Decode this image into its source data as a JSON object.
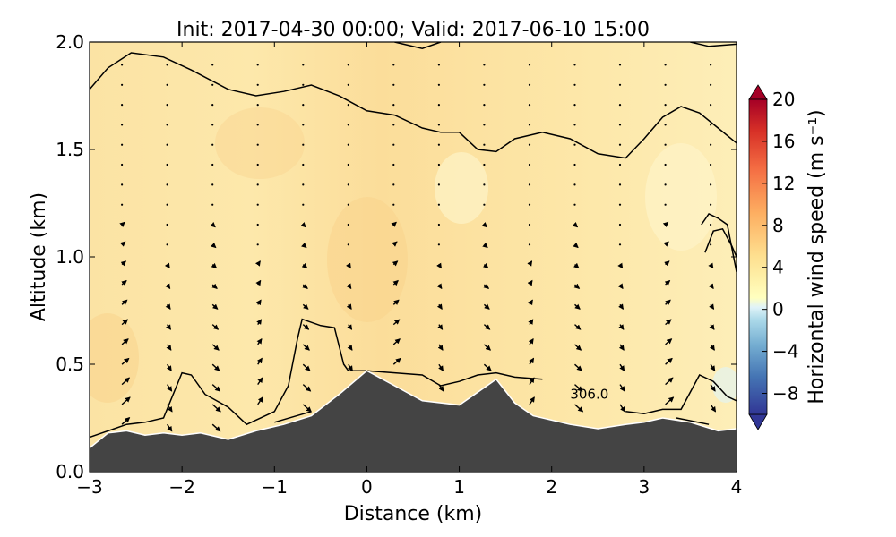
{
  "chart_data": {
    "type": "heatmap",
    "title": "Init: 2017-04-30 00:00; Valid: 2017-06-10 15:00",
    "xlabel": "Distance (km)",
    "ylabel": "Altitude (km)",
    "xlim": [
      -3,
      4
    ],
    "ylim": [
      0.0,
      2.0
    ],
    "x_ticks": [
      -3,
      -2,
      -1,
      0,
      1,
      2,
      3,
      4
    ],
    "x_tick_labels": [
      "−3",
      "−2",
      "−1",
      "0",
      "1",
      "2",
      "3",
      "4"
    ],
    "y_ticks": [
      0.0,
      0.5,
      1.0,
      1.5,
      2.0
    ],
    "y_tick_labels": [
      "0.0",
      "0.5",
      "1.0",
      "1.5",
      "2.0"
    ],
    "colorbar": {
      "label": "Horizontal wind speed (m s⁻¹)",
      "range": [
        -10,
        20
      ],
      "ticks": [
        -8,
        -4,
        0,
        4,
        8,
        12,
        16,
        20
      ],
      "tick_labels": [
        "−8",
        "−4",
        "0",
        "4",
        "8",
        "12",
        "16",
        "20"
      ],
      "extend": "both"
    },
    "contour_label": "306.0",
    "contour_label_pos": [
      2.2,
      0.34
    ],
    "terrain": {
      "x": [
        -3.0,
        -2.8,
        -2.6,
        -2.4,
        -2.2,
        -2.0,
        -1.8,
        -1.5,
        -1.2,
        -0.9,
        -0.6,
        -0.3,
        0.0,
        0.3,
        0.6,
        1.0,
        1.2,
        1.4,
        1.6,
        1.8,
        2.2,
        2.5,
        2.8,
        3.0,
        3.2,
        3.5,
        3.8,
        4.0
      ],
      "y": [
        0.11,
        0.18,
        0.19,
        0.17,
        0.18,
        0.17,
        0.18,
        0.15,
        0.19,
        0.22,
        0.26,
        0.36,
        0.47,
        0.4,
        0.33,
        0.31,
        0.37,
        0.43,
        0.32,
        0.26,
        0.22,
        0.2,
        0.22,
        0.23,
        0.25,
        0.23,
        0.19,
        0.2
      ]
    },
    "isentropes": [
      {
        "x": [
          -3.0,
          -2.8,
          -2.55,
          -2.2,
          -1.9,
          -1.5,
          -1.2,
          -0.9,
          -0.6,
          -0.3,
          0.0,
          0.3,
          0.6,
          0.8,
          1.0,
          1.2,
          1.4,
          1.6,
          1.9,
          2.2,
          2.5,
          2.8,
          3.0,
          3.2,
          3.4,
          3.6,
          3.8,
          4.0
        ],
        "y": [
          1.78,
          1.88,
          1.95,
          1.93,
          1.87,
          1.78,
          1.75,
          1.77,
          1.8,
          1.75,
          1.68,
          1.66,
          1.6,
          1.58,
          1.58,
          1.5,
          1.49,
          1.55,
          1.58,
          1.55,
          1.48,
          1.46,
          1.55,
          1.65,
          1.7,
          1.67,
          1.6,
          1.53
        ]
      },
      {
        "x": [
          0.3,
          0.6,
          0.8
        ],
        "y": [
          2.0,
          1.97,
          2.0
        ]
      },
      {
        "x": [
          3.5,
          3.7,
          4.0
        ],
        "y": [
          2.0,
          1.98,
          1.99
        ]
      },
      {
        "x": [
          -3.0,
          -2.8,
          -2.6,
          -2.4,
          -2.2,
          -2.0,
          -1.9,
          -1.75,
          -1.5,
          -1.3,
          -1.0,
          -0.85,
          -0.75,
          -0.7,
          -0.5,
          -0.35,
          -0.25,
          -0.2,
          0.0,
          0.3,
          0.6,
          0.8,
          1.0,
          1.2,
          1.4,
          1.6,
          1.9
        ],
        "y": [
          0.16,
          0.19,
          0.22,
          0.23,
          0.25,
          0.46,
          0.45,
          0.36,
          0.3,
          0.22,
          0.28,
          0.4,
          0.62,
          0.71,
          0.68,
          0.67,
          0.5,
          0.47,
          0.47,
          0.46,
          0.45,
          0.4,
          0.42,
          0.45,
          0.46,
          0.44,
          0.43
        ]
      },
      {
        "x": [
          2.8,
          3.0,
          3.2,
          3.4,
          3.6,
          3.75,
          3.9,
          4.0
        ],
        "y": [
          0.28,
          0.27,
          0.29,
          0.29,
          0.45,
          0.42,
          0.35,
          0.33
        ]
      },
      {
        "x": [
          3.62,
          3.7,
          3.8,
          3.9,
          4.0
        ],
        "y": [
          1.15,
          1.2,
          1.18,
          1.15,
          0.93
        ]
      },
      {
        "x": [
          3.66,
          3.75,
          3.85,
          3.95,
          4.0
        ],
        "y": [
          1.02,
          1.12,
          1.13,
          1.05,
          1.0
        ]
      },
      {
        "x": [
          -1.0,
          -0.6
        ],
        "y": [
          0.23,
          0.28
        ]
      },
      {
        "x": [
          3.35,
          3.7
        ],
        "y": [
          0.25,
          0.22
        ]
      }
    ]
  }
}
